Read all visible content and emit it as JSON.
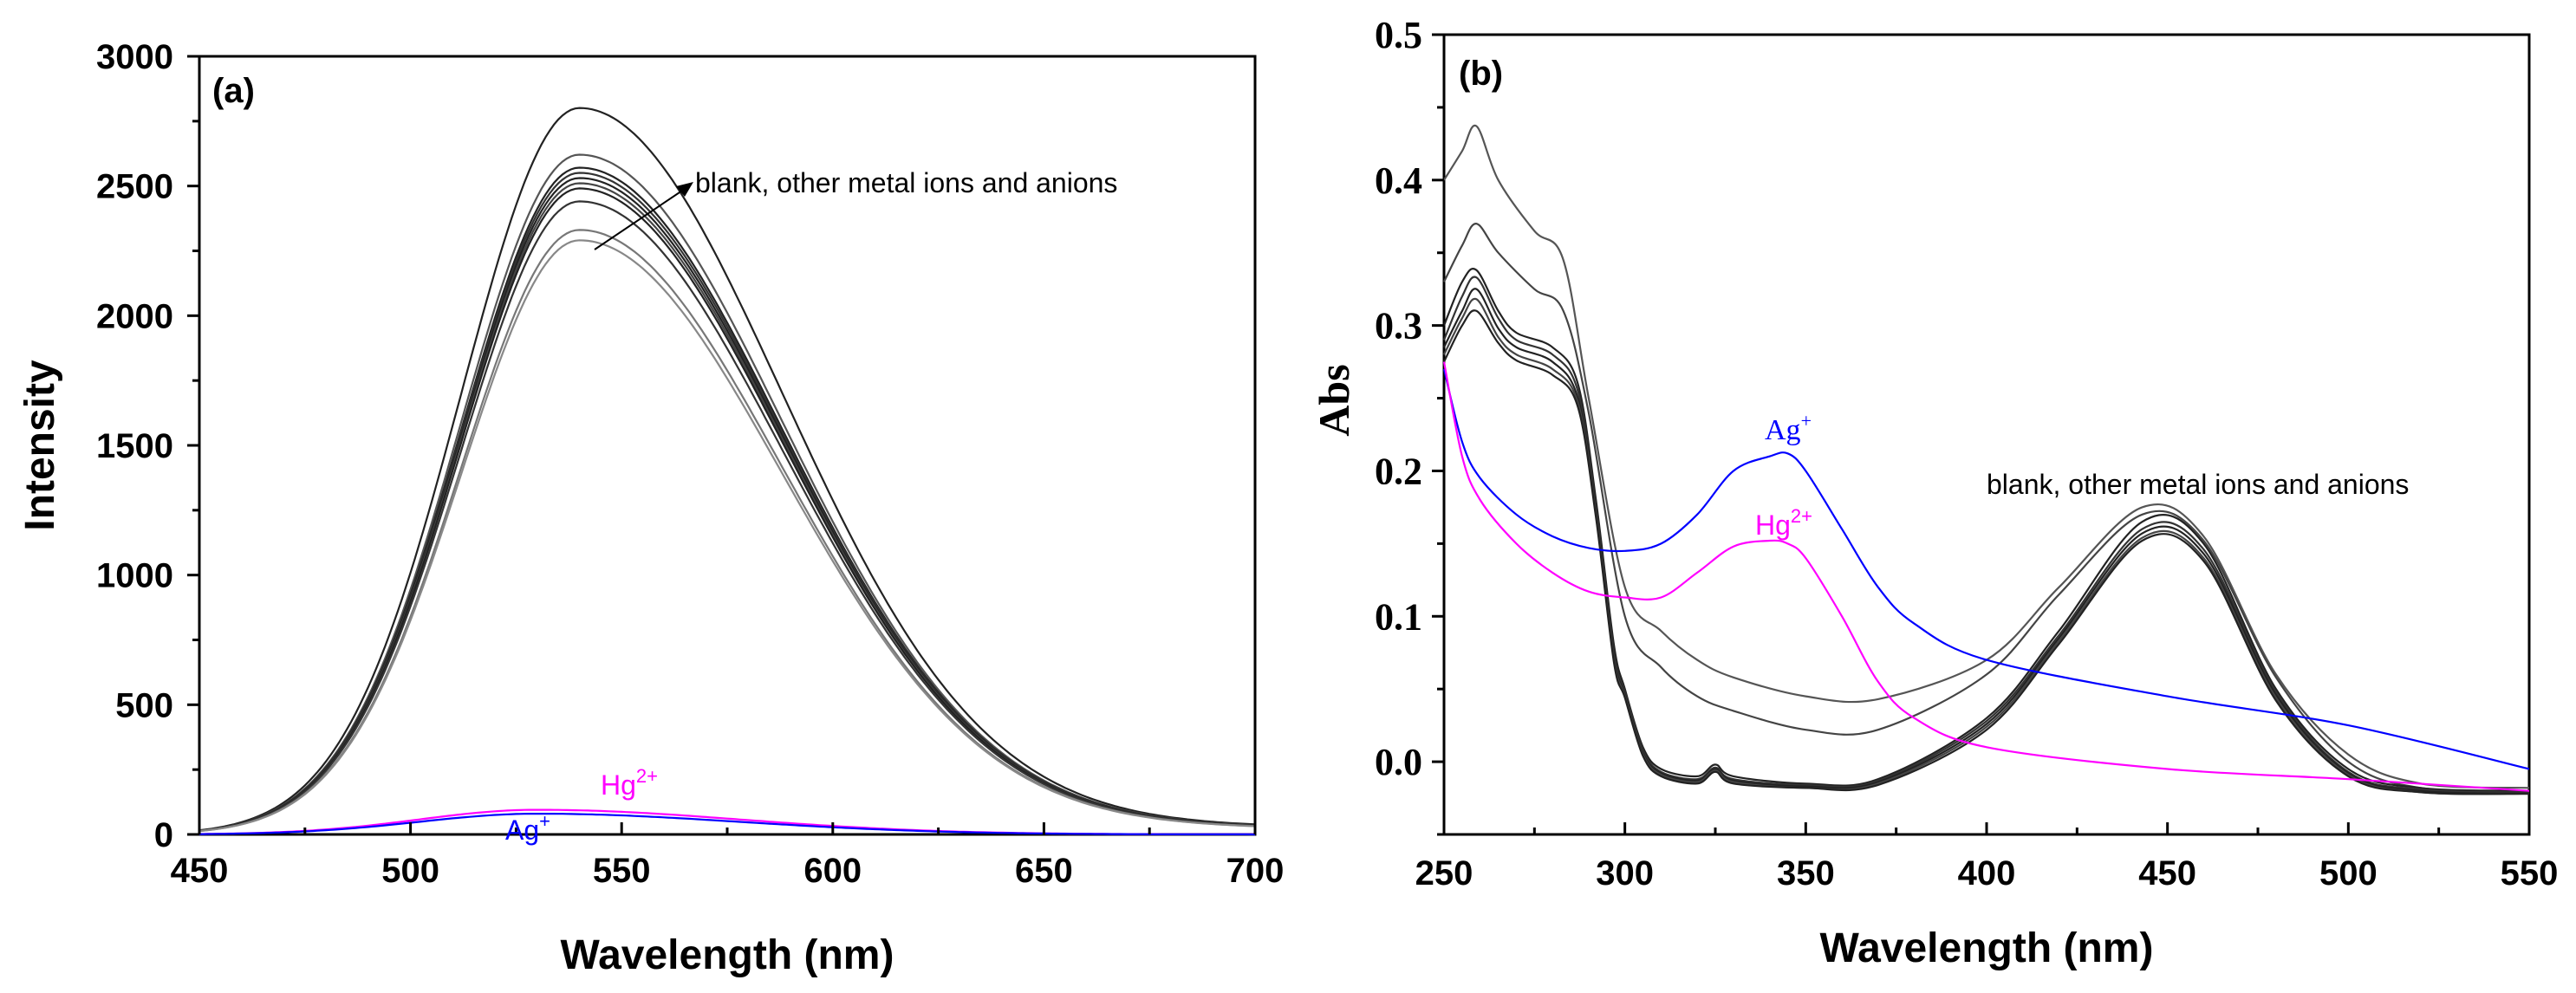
{
  "chart_data": [
    {
      "type": "line",
      "panel_label": "(a)",
      "xlabel": "Wavelength (nm)",
      "ylabel": "Intensity",
      "xlim": [
        450,
        700
      ],
      "ylim": [
        0,
        3000
      ],
      "xticks": [
        450,
        500,
        550,
        600,
        650,
        700
      ],
      "yticks": [
        0,
        500,
        1000,
        1500,
        2000,
        2500,
        3000
      ],
      "annotation": "blank, other metal ions and anions",
      "series": [
        {
          "name": "blank/other ions",
          "peak_x": 540,
          "peak_y": 2800,
          "color": "#222222"
        },
        {
          "name": "blank/other ions",
          "peak_x": 540,
          "peak_y": 2620,
          "color": "#555555"
        },
        {
          "name": "blank/other ions",
          "peak_x": 540,
          "peak_y": 2570,
          "color": "#222222"
        },
        {
          "name": "blank/other ions",
          "peak_x": 540,
          "peak_y": 2550,
          "color": "#333333"
        },
        {
          "name": "blank/other ions",
          "peak_x": 540,
          "peak_y": 2530,
          "color": "#222222"
        },
        {
          "name": "blank/other ions",
          "peak_x": 540,
          "peak_y": 2510,
          "color": "#444444"
        },
        {
          "name": "blank/other ions",
          "peak_x": 540,
          "peak_y": 2490,
          "color": "#222222"
        },
        {
          "name": "blank/other ions",
          "peak_x": 540,
          "peak_y": 2440,
          "color": "#333333"
        },
        {
          "name": "blank/other ions",
          "peak_x": 540,
          "peak_y": 2330,
          "color": "#777777"
        },
        {
          "name": "blank/other ions",
          "peak_x": 540,
          "peak_y": 2290,
          "color": "#888888"
        },
        {
          "name": "Hg2+",
          "peak_x": 530,
          "peak_y": 95,
          "color": "#ff00ff"
        },
        {
          "name": "Ag+",
          "peak_x": 530,
          "peak_y": 80,
          "color": "#0000ff"
        }
      ],
      "ion_labels": {
        "hg": {
          "base": "Hg",
          "sup": "2+",
          "color": "#ff00ff"
        },
        "ag": {
          "base": "Ag",
          "sup": "+",
          "color": "#0000ff"
        }
      }
    },
    {
      "type": "line",
      "panel_label": "(b)",
      "xlabel": "Wavelength (nm)",
      "ylabel": "Abs",
      "xlim": [
        250,
        550
      ],
      "ylim": [
        -0.05,
        0.5
      ],
      "xticks": [
        250,
        300,
        350,
        400,
        450,
        500,
        550
      ],
      "yticks": [
        0.0,
        0.1,
        0.2,
        0.3,
        0.4,
        0.5
      ],
      "annotation": "blank, other metal ions and anions",
      "series": [
        {
          "name": "other",
          "points": [
            [
              250,
              0.4
            ],
            [
              255,
              0.42
            ],
            [
              259,
              0.437
            ],
            [
              265,
              0.4
            ],
            [
              275,
              0.365
            ],
            [
              283,
              0.345
            ],
            [
              290,
              0.25
            ],
            [
              300,
              0.12
            ],
            [
              310,
              0.09
            ],
            [
              320,
              0.07
            ],
            [
              330,
              0.058
            ],
            [
              350,
              0.045
            ],
            [
              370,
              0.043
            ],
            [
              400,
              0.07
            ],
            [
              420,
              0.12
            ],
            [
              443,
              0.175
            ],
            [
              460,
              0.155
            ],
            [
              480,
              0.06
            ],
            [
              500,
              0.005
            ],
            [
              520,
              -0.015
            ],
            [
              550,
              -0.018
            ]
          ],
          "color": "#555555"
        },
        {
          "name": "other",
          "points": [
            [
              250,
              0.33
            ],
            [
              255,
              0.355
            ],
            [
              259,
              0.37
            ],
            [
              265,
              0.35
            ],
            [
              275,
              0.325
            ],
            [
              283,
              0.31
            ],
            [
              290,
              0.24
            ],
            [
              300,
              0.1
            ],
            [
              310,
              0.065
            ],
            [
              320,
              0.045
            ],
            [
              330,
              0.035
            ],
            [
              350,
              0.022
            ],
            [
              370,
              0.022
            ],
            [
              400,
              0.06
            ],
            [
              420,
              0.115
            ],
            [
              443,
              0.17
            ],
            [
              460,
              0.152
            ],
            [
              480,
              0.058
            ],
            [
              500,
              0.0
            ],
            [
              520,
              -0.018
            ],
            [
              550,
              -0.02
            ]
          ],
          "color": "#444444"
        },
        {
          "name": "other",
          "points": [
            [
              250,
              0.3
            ],
            [
              255,
              0.33
            ],
            [
              259,
              0.338
            ],
            [
              265,
              0.31
            ],
            [
              270,
              0.295
            ],
            [
              280,
              0.285
            ],
            [
              287,
              0.26
            ],
            [
              292,
              0.18
            ],
            [
              297,
              0.08
            ],
            [
              300,
              0.05
            ],
            [
              305,
              0.01
            ],
            [
              310,
              -0.005
            ],
            [
              320,
              -0.01
            ],
            [
              325,
              -0.002
            ],
            [
              330,
              -0.01
            ],
            [
              350,
              -0.015
            ],
            [
              370,
              -0.012
            ],
            [
              400,
              0.03
            ],
            [
              420,
              0.09
            ],
            [
              443,
              0.165
            ],
            [
              460,
              0.15
            ],
            [
              480,
              0.05
            ],
            [
              500,
              -0.005
            ],
            [
              520,
              -0.018
            ],
            [
              550,
              -0.02
            ]
          ],
          "color": "#222222"
        },
        {
          "name": "other",
          "points": [
            [
              250,
              0.29
            ],
            [
              255,
              0.32
            ],
            [
              259,
              0.333
            ],
            [
              265,
              0.305
            ],
            [
              270,
              0.29
            ],
            [
              280,
              0.28
            ],
            [
              287,
              0.255
            ],
            [
              292,
              0.175
            ],
            [
              297,
              0.075
            ],
            [
              300,
              0.048
            ],
            [
              305,
              0.008
            ],
            [
              310,
              -0.007
            ],
            [
              320,
              -0.012
            ],
            [
              325,
              -0.004
            ],
            [
              330,
              -0.012
            ],
            [
              350,
              -0.016
            ],
            [
              370,
              -0.013
            ],
            [
              400,
              0.028
            ],
            [
              420,
              0.087
            ],
            [
              443,
              0.16
            ],
            [
              460,
              0.146
            ],
            [
              480,
              0.048
            ],
            [
              500,
              -0.007
            ],
            [
              520,
              -0.019
            ],
            [
              550,
              -0.021
            ]
          ],
          "color": "#333333"
        },
        {
          "name": "other",
          "points": [
            [
              250,
              0.285
            ],
            [
              255,
              0.31
            ],
            [
              259,
              0.325
            ],
            [
              265,
              0.298
            ],
            [
              270,
              0.285
            ],
            [
              280,
              0.275
            ],
            [
              287,
              0.25
            ],
            [
              292,
              0.172
            ],
            [
              297,
              0.072
            ],
            [
              300,
              0.046
            ],
            [
              305,
              0.006
            ],
            [
              310,
              -0.008
            ],
            [
              320,
              -0.013
            ],
            [
              325,
              -0.005
            ],
            [
              330,
              -0.013
            ],
            [
              350,
              -0.017
            ],
            [
              370,
              -0.014
            ],
            [
              400,
              0.026
            ],
            [
              420,
              0.085
            ],
            [
              443,
              0.157
            ],
            [
              460,
              0.143
            ],
            [
              480,
              0.046
            ],
            [
              500,
              -0.008
            ],
            [
              520,
              -0.02
            ],
            [
              550,
              -0.022
            ]
          ],
          "color": "#222222"
        },
        {
          "name": "other",
          "points": [
            [
              250,
              0.28
            ],
            [
              255,
              0.305
            ],
            [
              259,
              0.318
            ],
            [
              265,
              0.292
            ],
            [
              270,
              0.28
            ],
            [
              280,
              0.27
            ],
            [
              287,
              0.247
            ],
            [
              292,
              0.17
            ],
            [
              297,
              0.07
            ],
            [
              300,
              0.045
            ],
            [
              305,
              0.005
            ],
            [
              310,
              -0.009
            ],
            [
              320,
              -0.014
            ],
            [
              325,
              -0.006
            ],
            [
              330,
              -0.014
            ],
            [
              350,
              -0.018
            ],
            [
              370,
              -0.015
            ],
            [
              400,
              0.024
            ],
            [
              420,
              0.083
            ],
            [
              443,
              0.154
            ],
            [
              460,
              0.14
            ],
            [
              480,
              0.044
            ],
            [
              500,
              -0.009
            ],
            [
              520,
              -0.021
            ],
            [
              550,
              -0.022
            ]
          ],
          "color": "#444444"
        },
        {
          "name": "other",
          "points": [
            [
              250,
              0.275
            ],
            [
              255,
              0.3
            ],
            [
              259,
              0.31
            ],
            [
              265,
              0.288
            ],
            [
              270,
              0.276
            ],
            [
              280,
              0.266
            ],
            [
              287,
              0.244
            ],
            [
              292,
              0.168
            ],
            [
              297,
              0.068
            ],
            [
              300,
              0.044
            ],
            [
              305,
              0.004
            ],
            [
              310,
              -0.01
            ],
            [
              320,
              -0.015
            ],
            [
              325,
              -0.007
            ],
            [
              330,
              -0.015
            ],
            [
              350,
              -0.018
            ],
            [
              370,
              -0.016
            ],
            [
              400,
              0.022
            ],
            [
              420,
              0.081
            ],
            [
              443,
              0.152
            ],
            [
              460,
              0.138
            ],
            [
              480,
              0.042
            ],
            [
              500,
              -0.01
            ],
            [
              520,
              -0.021
            ],
            [
              550,
              -0.022
            ]
          ],
          "color": "#222222"
        },
        {
          "name": "Ag+",
          "points": [
            [
              250,
              0.27
            ],
            [
              255,
              0.22
            ],
            [
              260,
              0.195
            ],
            [
              270,
              0.17
            ],
            [
              280,
              0.155
            ],
            [
              290,
              0.147
            ],
            [
              300,
              0.145
            ],
            [
              310,
              0.15
            ],
            [
              320,
              0.17
            ],
            [
              330,
              0.2
            ],
            [
              340,
              0.21
            ],
            [
              345,
              0.212
            ],
            [
              350,
              0.2
            ],
            [
              360,
              0.16
            ],
            [
              370,
              0.12
            ],
            [
              380,
              0.095
            ],
            [
              400,
              0.07
            ],
            [
              450,
              0.045
            ],
            [
              500,
              0.025
            ],
            [
              550,
              -0.005
            ]
          ],
          "color": "#0000ff"
        },
        {
          "name": "Hg2+",
          "points": [
            [
              250,
              0.275
            ],
            [
              255,
              0.21
            ],
            [
              260,
              0.18
            ],
            [
              270,
              0.15
            ],
            [
              280,
              0.13
            ],
            [
              290,
              0.117
            ],
            [
              300,
              0.113
            ],
            [
              310,
              0.113
            ],
            [
              320,
              0.13
            ],
            [
              330,
              0.148
            ],
            [
              340,
              0.152
            ],
            [
              345,
              0.15
            ],
            [
              350,
              0.14
            ],
            [
              360,
              0.1
            ],
            [
              370,
              0.055
            ],
            [
              380,
              0.03
            ],
            [
              400,
              0.01
            ],
            [
              450,
              -0.005
            ],
            [
              500,
              -0.012
            ],
            [
              550,
              -0.02
            ]
          ],
          "color": "#ff00ff"
        }
      ],
      "ion_labels": {
        "ag": {
          "base": "Ag",
          "sup": "+",
          "color": "#0000ff"
        },
        "hg": {
          "base": "Hg",
          "sup": "2+",
          "color": "#ff00ff"
        }
      }
    }
  ]
}
